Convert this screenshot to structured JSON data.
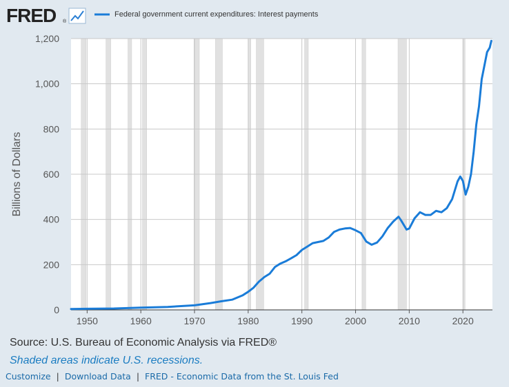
{
  "header": {
    "logo_text": "FRED",
    "logo_registered": "®"
  },
  "footer": {
    "source": "Source: U.S. Bureau of Economic Analysis via FRED®",
    "recession_note": "Shaded areas indicate U.S. recessions.",
    "links": [
      "Customize",
      "Download Data",
      "FRED - Economic Data from the St. Louis Fed"
    ],
    "separator": "|"
  },
  "colors": {
    "background": "#e1e9f0",
    "plot_background": "#ffffff",
    "series_line": "#1a7cd8",
    "recession_band": "#e1e1e1",
    "gridline": "#c8c8c8",
    "link": "#1a6aa8"
  },
  "chart_data": {
    "type": "line",
    "title": "",
    "xlabel": "",
    "ylabel": "Billions of Dollars",
    "xlim": [
      1947.0,
      2025.5
    ],
    "ylim": [
      0,
      1200
    ],
    "x_ticks": [
      1950,
      1960,
      1970,
      1980,
      1990,
      2000,
      2010,
      2020
    ],
    "y_ticks": [
      0,
      200,
      400,
      600,
      800,
      1000,
      1200
    ],
    "y_tick_labels": [
      "0",
      "200",
      "400",
      "600",
      "800",
      "1,000",
      "1,200"
    ],
    "grid": true,
    "legend_position": "top-left",
    "recessions": [
      [
        1948.9,
        1949.8
      ],
      [
        1953.5,
        1954.4
      ],
      [
        1957.6,
        1958.3
      ],
      [
        1960.3,
        1961.1
      ],
      [
        1969.9,
        1970.9
      ],
      [
        1973.9,
        1975.2
      ],
      [
        1980.0,
        1980.5
      ],
      [
        1981.5,
        1982.9
      ],
      [
        1990.5,
        1991.2
      ],
      [
        2001.2,
        2001.9
      ],
      [
        2007.9,
        2009.5
      ],
      [
        2020.1,
        2020.4
      ]
    ],
    "series": [
      {
        "name": "Federal government current expenditures: Interest payments",
        "x": [
          1947,
          1950,
          1955,
          1960,
          1965,
          1970,
          1973,
          1975,
          1977,
          1979,
          1980,
          1981,
          1982,
          1983,
          1984,
          1985,
          1986,
          1987,
          1988,
          1989,
          1990,
          1991,
          1992,
          1993,
          1994,
          1995,
          1996,
          1997,
          1998,
          1999,
          2000,
          2001,
          2002,
          2003,
          2004,
          2005,
          2006,
          2007,
          2008,
          2008.5,
          2009,
          2009.5,
          2010,
          2011,
          2012,
          2013,
          2014,
          2015,
          2016,
          2017,
          2018,
          2019,
          2019.5,
          2020,
          2020.5,
          2021,
          2021.5,
          2022,
          2022.5,
          2023,
          2023.5,
          2024,
          2024.5,
          2025,
          2025.3
        ],
        "values": [
          4,
          5,
          6,
          10,
          13,
          20,
          30,
          38,
          45,
          65,
          80,
          98,
          125,
          145,
          160,
          190,
          205,
          215,
          228,
          242,
          265,
          280,
          295,
          300,
          305,
          320,
          345,
          355,
          360,
          362,
          352,
          340,
          302,
          288,
          298,
          325,
          362,
          390,
          412,
          395,
          375,
          355,
          360,
          405,
          432,
          420,
          420,
          438,
          432,
          450,
          490,
          568,
          590,
          570,
          510,
          545,
          600,
          700,
          820,
          900,
          1020,
          1080,
          1140,
          1160,
          1190
        ]
      }
    ]
  }
}
